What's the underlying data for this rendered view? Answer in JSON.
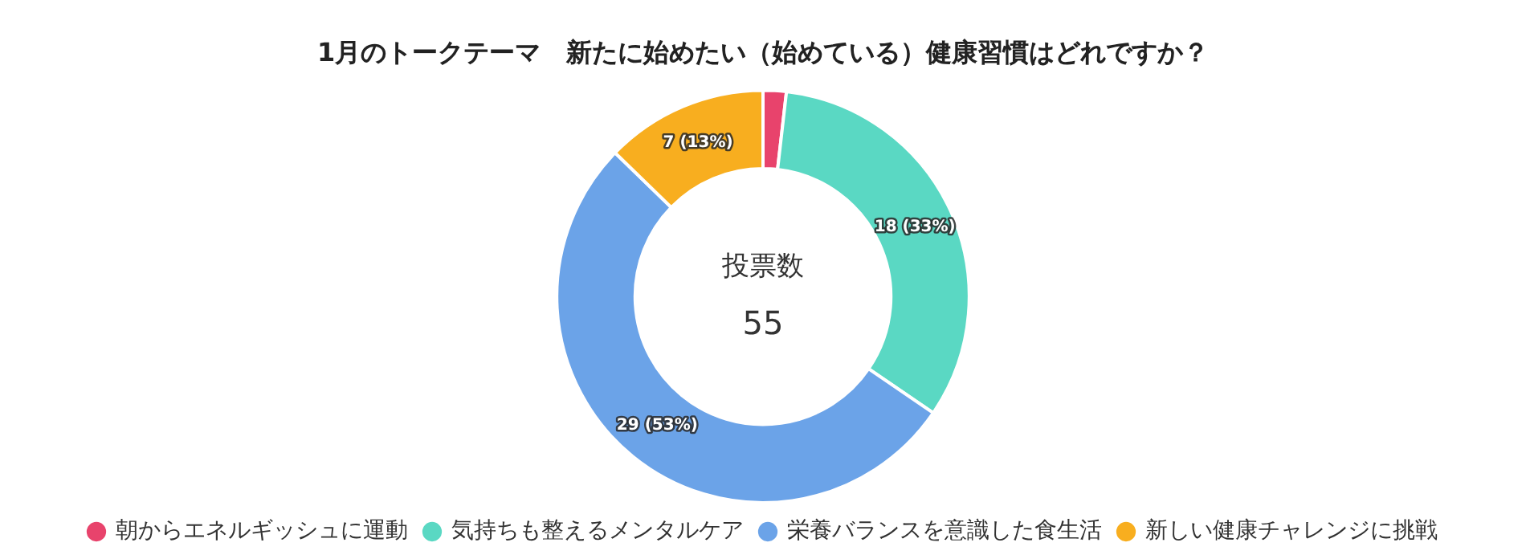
{
  "chart_data": {
    "type": "donut",
    "title": "1月のトークテーマ　新たに始めたい（始めている）健康習慣はどれですか？",
    "categories": [
      "朝からエネルギッシュに運動",
      "気持ちも整えるメンタルケア",
      "栄養バランスを意識した食生活",
      "新しい健康チャレンジに挑戦"
    ],
    "values": [
      1,
      18,
      29,
      7
    ],
    "colors": [
      "#e8436c",
      "#5ad8c3",
      "#6ba3e8",
      "#f8ae1f"
    ],
    "value_labels": [
      null,
      "18 (33%)",
      "29 (53%)",
      "7 (13%)"
    ],
    "annotations": [
      "投票数",
      "55"
    ],
    "legend": "bottom"
  }
}
